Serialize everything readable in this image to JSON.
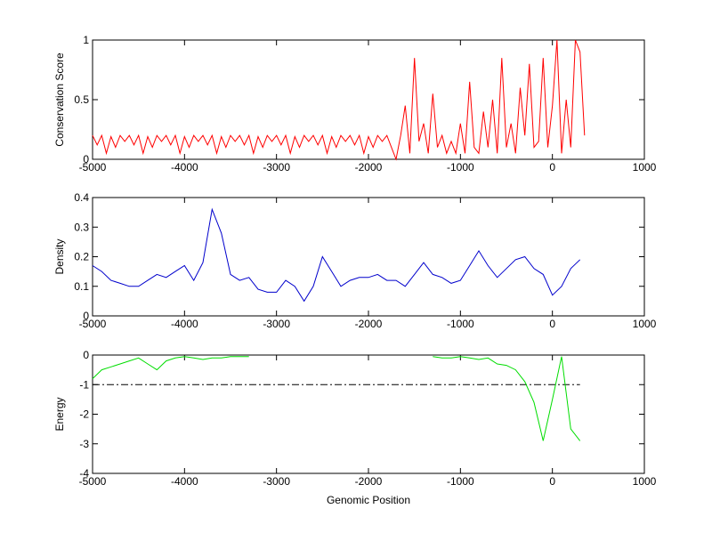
{
  "chart_data": [
    {
      "type": "line",
      "ylabel": "Conservation Score",
      "color": "#ff0000",
      "xlim": [
        -5000,
        1000
      ],
      "xticks": [
        -5000,
        -4000,
        -3000,
        -2000,
        -1000,
        0,
        1000
      ],
      "ylim": [
        0,
        1
      ],
      "yticks": [
        0,
        0.5,
        1
      ],
      "x": [
        -5000,
        -4950,
        -4900,
        -4850,
        -4800,
        -4750,
        -4700,
        -4650,
        -4600,
        -4550,
        -4500,
        -4450,
        -4400,
        -4350,
        -4300,
        -4250,
        -4200,
        -4150,
        -4100,
        -4050,
        -4000,
        -3950,
        -3900,
        -3850,
        -3800,
        -3750,
        -3700,
        -3650,
        -3600,
        -3550,
        -3500,
        -3450,
        -3400,
        -3350,
        -3300,
        -3250,
        -3200,
        -3150,
        -3100,
        -3050,
        -3000,
        -2950,
        -2900,
        -2850,
        -2800,
        -2750,
        -2700,
        -2650,
        -2600,
        -2550,
        -2500,
        -2450,
        -2400,
        -2350,
        -2300,
        -2250,
        -2200,
        -2150,
        -2100,
        -2050,
        -2000,
        -1950,
        -1900,
        -1850,
        -1800,
        -1750,
        -1700,
        -1650,
        -1600,
        -1550,
        -1500,
        -1450,
        -1400,
        -1350,
        -1300,
        -1250,
        -1200,
        -1150,
        -1100,
        -1050,
        -1000,
        -950,
        -900,
        -850,
        -800,
        -750,
        -700,
        -650,
        -600,
        -550,
        -500,
        -450,
        -400,
        -350,
        -300,
        -250,
        -200,
        -150,
        -100,
        -50,
        0,
        50,
        100,
        150,
        200,
        250,
        300,
        350
      ],
      "values": [
        0.2,
        0.12,
        0.2,
        0.05,
        0.19,
        0.1,
        0.2,
        0.15,
        0.2,
        0.12,
        0.2,
        0.05,
        0.19,
        0.1,
        0.2,
        0.15,
        0.2,
        0.12,
        0.2,
        0.05,
        0.19,
        0.1,
        0.2,
        0.15,
        0.2,
        0.12,
        0.2,
        0.05,
        0.19,
        0.1,
        0.2,
        0.15,
        0.2,
        0.12,
        0.2,
        0.05,
        0.19,
        0.1,
        0.2,
        0.15,
        0.2,
        0.12,
        0.2,
        0.05,
        0.19,
        0.1,
        0.2,
        0.15,
        0.2,
        0.12,
        0.2,
        0.05,
        0.19,
        0.1,
        0.2,
        0.15,
        0.2,
        0.12,
        0.2,
        0.05,
        0.19,
        0.1,
        0.2,
        0.15,
        0.2,
        0.1,
        0,
        0.2,
        0.45,
        0.05,
        0.85,
        0.15,
        0.3,
        0.05,
        0.55,
        0.1,
        0.2,
        0.05,
        0.15,
        0.05,
        0.3,
        0.05,
        0.65,
        0.1,
        0.05,
        0.4,
        0.1,
        0.5,
        0.05,
        0.85,
        0.1,
        0.3,
        0.05,
        0.6,
        0.2,
        0.8,
        0.1,
        0.15,
        0.85,
        0.1,
        0.45,
        1.0,
        0.05,
        0.5,
        0.1,
        1.0,
        0.9,
        0.2
      ]
    },
    {
      "type": "line",
      "ylabel": "Density",
      "color": "#0000cc",
      "xlim": [
        -5000,
        1000
      ],
      "xticks": [
        -5000,
        -4000,
        -3000,
        -2000,
        -1000,
        0,
        1000
      ],
      "ylim": [
        0,
        0.4
      ],
      "yticks": [
        0,
        0.1,
        0.2,
        0.3,
        0.4
      ],
      "x": [
        -5000,
        -4900,
        -4800,
        -4700,
        -4600,
        -4500,
        -4400,
        -4300,
        -4200,
        -4100,
        -4000,
        -3900,
        -3800,
        -3700,
        -3600,
        -3500,
        -3400,
        -3300,
        -3200,
        -3100,
        -3000,
        -2900,
        -2800,
        -2700,
        -2600,
        -2500,
        -2400,
        -2300,
        -2200,
        -2100,
        -2000,
        -1900,
        -1800,
        -1700,
        -1600,
        -1500,
        -1400,
        -1300,
        -1200,
        -1100,
        -1000,
        -900,
        -800,
        -700,
        -600,
        -500,
        -400,
        -300,
        -200,
        -100,
        0,
        100,
        200,
        300
      ],
      "values": [
        0.17,
        0.15,
        0.12,
        0.11,
        0.1,
        0.1,
        0.12,
        0.14,
        0.13,
        0.15,
        0.17,
        0.12,
        0.18,
        0.36,
        0.28,
        0.14,
        0.12,
        0.13,
        0.09,
        0.08,
        0.08,
        0.12,
        0.1,
        0.05,
        0.1,
        0.2,
        0.15,
        0.1,
        0.12,
        0.13,
        0.13,
        0.14,
        0.12,
        0.12,
        0.1,
        0.14,
        0.18,
        0.14,
        0.13,
        0.11,
        0.12,
        0.17,
        0.22,
        0.17,
        0.13,
        0.16,
        0.19,
        0.2,
        0.16,
        0.14,
        0.07,
        0.1,
        0.16,
        0.19
      ]
    },
    {
      "type": "line",
      "ylabel": "Energy",
      "xlabel": "Genomic Position",
      "color": "#00dd00",
      "xlim": [
        -5000,
        1000
      ],
      "xticks": [
        -5000,
        -4000,
        -3000,
        -2000,
        -1000,
        0,
        1000
      ],
      "ylim": [
        -4,
        0
      ],
      "yticks": [
        -4,
        -3,
        -2,
        -1,
        0
      ],
      "reference_line": -1,
      "x": [
        -5000,
        -4900,
        -4800,
        -4700,
        -4600,
        -4500,
        -4400,
        -4300,
        -4200,
        -4100,
        -4000,
        -3900,
        -3800,
        -3700,
        -3600,
        -3500,
        -3400,
        -3300,
        -3200,
        -3100,
        -3000,
        -2900,
        -2800,
        -2700,
        -2600,
        -2500,
        -2400,
        -2300,
        -2200,
        -2100,
        -2000,
        -1900,
        -1800,
        -1700,
        -1600,
        -1500,
        -1400,
        -1300,
        -1200,
        -1100,
        -1000,
        -900,
        -800,
        -700,
        -600,
        -500,
        -400,
        -300,
        -200,
        -100,
        0,
        100,
        200,
        300
      ],
      "values": [
        -0.8,
        -0.5,
        -0.4,
        -0.3,
        -0.2,
        -0.1,
        -0.3,
        -0.5,
        -0.2,
        -0.1,
        -0.05,
        -0.1,
        -0.15,
        -0.1,
        -0.1,
        -0.05,
        -0.05,
        -0.05,
        null,
        null,
        null,
        null,
        null,
        null,
        null,
        null,
        null,
        null,
        null,
        null,
        null,
        null,
        null,
        null,
        null,
        null,
        null,
        -0.05,
        -0.1,
        -0.1,
        -0.05,
        -0.1,
        -0.15,
        -0.1,
        -0.3,
        -0.35,
        -0.5,
        -0.9,
        -1.6,
        -2.9,
        -1.5,
        -0.05,
        -2.5,
        -2.9
      ]
    }
  ]
}
